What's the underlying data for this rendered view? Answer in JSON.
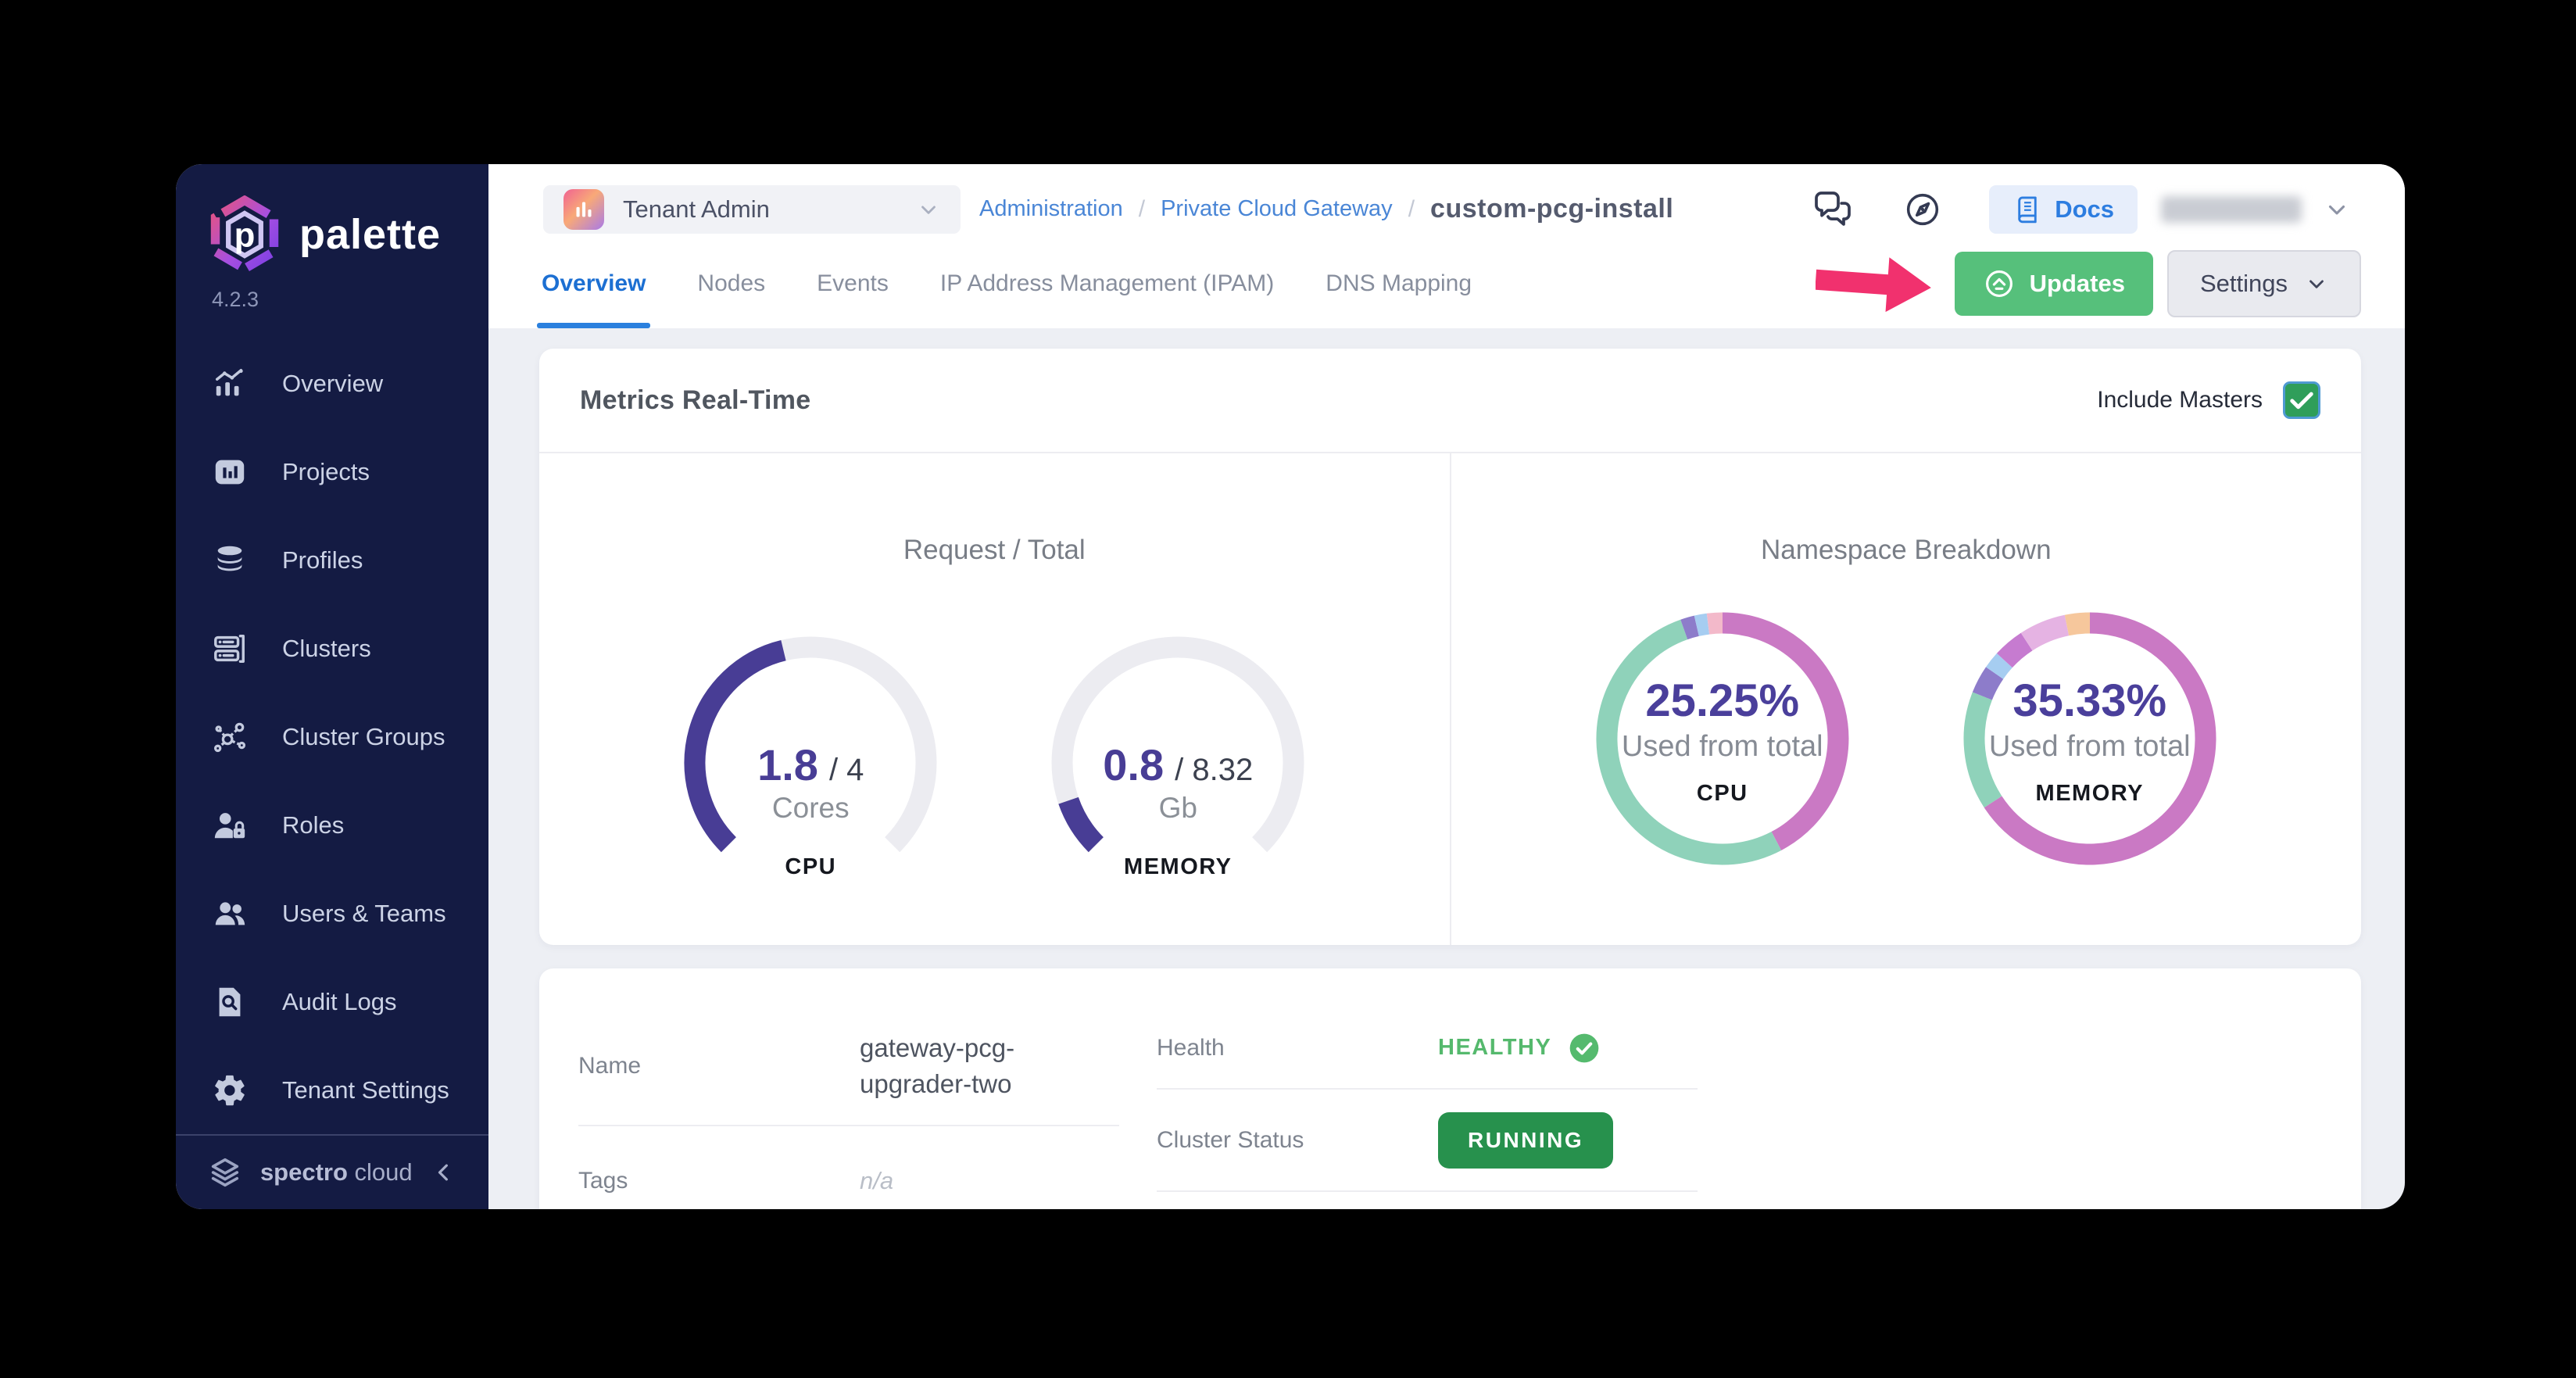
{
  "app": {
    "product": "palette",
    "version": "4.2.3"
  },
  "sidebar": {
    "items": [
      {
        "label": "Overview",
        "icon": "overview"
      },
      {
        "label": "Projects",
        "icon": "projects"
      },
      {
        "label": "Profiles",
        "icon": "profiles"
      },
      {
        "label": "Clusters",
        "icon": "clusters"
      },
      {
        "label": "Cluster Groups",
        "icon": "cluster-groups"
      },
      {
        "label": "Roles",
        "icon": "roles"
      },
      {
        "label": "Users & Teams",
        "icon": "users-teams"
      },
      {
        "label": "Audit Logs",
        "icon": "audit-logs"
      },
      {
        "label": "Tenant Settings",
        "icon": "tenant-settings"
      }
    ],
    "footer": {
      "brand_primary": "spectro",
      "brand_secondary": "cloud",
      "collapse_icon": "chevron-left"
    }
  },
  "header": {
    "tenant_selector": {
      "label": "Tenant Admin",
      "icon": "bar-chart"
    },
    "breadcrumb": {
      "links": [
        "Administration",
        "Private Cloud Gateway"
      ],
      "separator": "/",
      "current": "custom-pcg-install"
    },
    "docs_button": {
      "label": "Docs",
      "icon": "book"
    },
    "user_menu": {
      "redacted": true
    }
  },
  "tabs": {
    "items": [
      "Overview",
      "Nodes",
      "Events",
      "IP Address Management (IPAM)",
      "DNS Mapping"
    ],
    "active": "Overview"
  },
  "page_actions": {
    "updates": {
      "label": "Updates",
      "icon": "circle-arrow-up",
      "color": "#56c07b"
    },
    "settings": {
      "label": "Settings",
      "icon": "chevron-down"
    },
    "annotation_arrow_color": "#f1316e"
  },
  "metrics": {
    "title": "Metrics Real-Time",
    "include_masters_label": "Include Masters",
    "include_masters_checked": true,
    "left_section_title": "Request / Total",
    "right_section_title": "Namespace Breakdown"
  },
  "chart_data": [
    {
      "type": "gauge",
      "group": "Request / Total",
      "label": "CPU",
      "value": 1.8,
      "total": 4,
      "value_label": "1.8",
      "total_label": "/ 4",
      "unit": "Cores",
      "arc_degrees": 270,
      "color": "#483d95",
      "track_color": "#ececf1"
    },
    {
      "type": "gauge",
      "group": "Request / Total",
      "label": "MEMORY",
      "value": 0.8,
      "total": 8.32,
      "value_label": "0.8",
      "total_label": "/ 8.32",
      "unit": "Gb",
      "arc_degrees": 270,
      "color": "#483d95",
      "track_color": "#ececf1"
    },
    {
      "type": "donut",
      "group": "Namespace Breakdown",
      "label": "CPU",
      "percent_label": "25.25%",
      "caption": "Used from total",
      "segments": [
        {
          "color": "#ca79c4",
          "percent": 42.3
        },
        {
          "color": "#8fd2ba",
          "percent": 52.3
        },
        {
          "color": "#8d7cca",
          "percent": 1.8
        },
        {
          "color": "#a6cdf1",
          "percent": 1.6
        },
        {
          "color": "#f3b9ca",
          "percent": 2.0
        }
      ]
    },
    {
      "type": "donut",
      "group": "Namespace Breakdown",
      "label": "MEMORY",
      "percent_label": "35.33%",
      "caption": "Used from total",
      "segments": [
        {
          "color": "#ca79c4",
          "percent": 65.8
        },
        {
          "color": "#8fd2ba",
          "percent": 15.2
        },
        {
          "color": "#8d7cca",
          "percent": 3.6
        },
        {
          "color": "#a6cdf1",
          "percent": 2.2
        },
        {
          "color": "#c67bd0",
          "percent": 4.0
        },
        {
          "color": "#e5b3e3",
          "percent": 6.0
        },
        {
          "color": "#f6c79c",
          "percent": 3.2
        }
      ]
    }
  ],
  "details": {
    "left_rows": [
      {
        "label": "Name",
        "value": "gateway-pcg-upgrader-two"
      },
      {
        "label": "Tags",
        "value": "n/a"
      }
    ],
    "right_rows": [
      {
        "label": "Health",
        "value": "HEALTHY"
      },
      {
        "label": "Cluster Status",
        "value": "RUNNING"
      }
    ]
  }
}
